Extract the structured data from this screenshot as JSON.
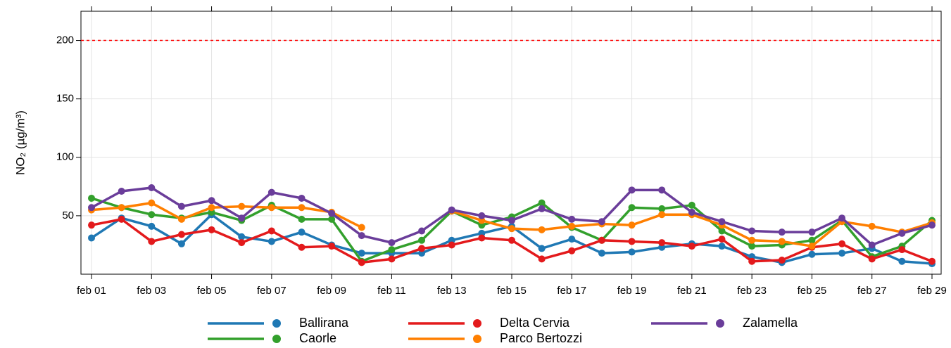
{
  "chart_data": {
    "type": "line",
    "y_label": "NO₂ (µg/m³)",
    "categories": [
      "feb 01",
      null,
      "feb 03",
      null,
      "feb 05",
      null,
      "feb 07",
      null,
      "feb 09",
      null,
      "feb 11",
      null,
      "feb 13",
      null,
      "feb 15",
      null,
      "feb 17",
      null,
      "feb 19",
      null,
      "feb 21",
      null,
      "feb 23",
      null,
      "feb 25",
      null,
      "feb 27",
      null,
      "feb 29"
    ],
    "series": [
      {
        "name": "Ballirana",
        "color": "#1f78b4",
        "values": [
          31,
          48,
          41,
          26,
          51,
          32,
          28,
          36,
          25,
          18,
          18,
          18,
          29,
          35,
          41,
          22,
          30,
          18,
          19,
          23,
          26,
          24,
          15,
          10,
          17,
          18,
          22,
          11,
          9
        ]
      },
      {
        "name": "Caorle",
        "color": "#33a02c",
        "values": [
          65,
          57,
          51,
          48,
          53,
          46,
          59,
          47,
          47,
          11,
          21,
          29,
          54,
          42,
          49,
          61,
          40,
          29,
          57,
          56,
          59,
          37,
          24,
          25,
          29,
          46,
          15,
          24,
          46
        ]
      },
      {
        "name": "Delta Cervia",
        "color": "#e31a1c",
        "values": [
          42,
          47,
          28,
          34,
          38,
          27,
          37,
          23,
          24,
          10,
          13,
          22,
          25,
          31,
          29,
          13,
          20,
          29,
          28,
          27,
          24,
          30,
          11,
          12,
          23,
          26,
          13,
          21,
          11
        ]
      },
      {
        "name": "Parco Bertozzi",
        "color": "#ff7f00",
        "values": [
          55,
          57,
          61,
          47,
          57,
          58,
          57,
          57,
          53,
          40,
          null,
          null,
          54,
          46,
          39,
          38,
          41,
          43,
          42,
          51,
          51,
          42,
          29,
          28,
          24,
          45,
          41,
          36,
          44
        ]
      },
      {
        "name": "Zalamella",
        "color": "#6a3d9a",
        "values": [
          57,
          71,
          74,
          58,
          63,
          48,
          70,
          65,
          52,
          33,
          27,
          37,
          55,
          50,
          46,
          56,
          47,
          45,
          72,
          72,
          53,
          45,
          37,
          36,
          36,
          48,
          25,
          35,
          42
        ]
      }
    ],
    "ylim": [
      0,
      225
    ],
    "yticks": [
      50,
      100,
      150,
      200
    ],
    "grid": true,
    "reference_line": {
      "value": 200,
      "color": "#ff0000",
      "style": "dashed"
    },
    "legend": "bottom"
  }
}
